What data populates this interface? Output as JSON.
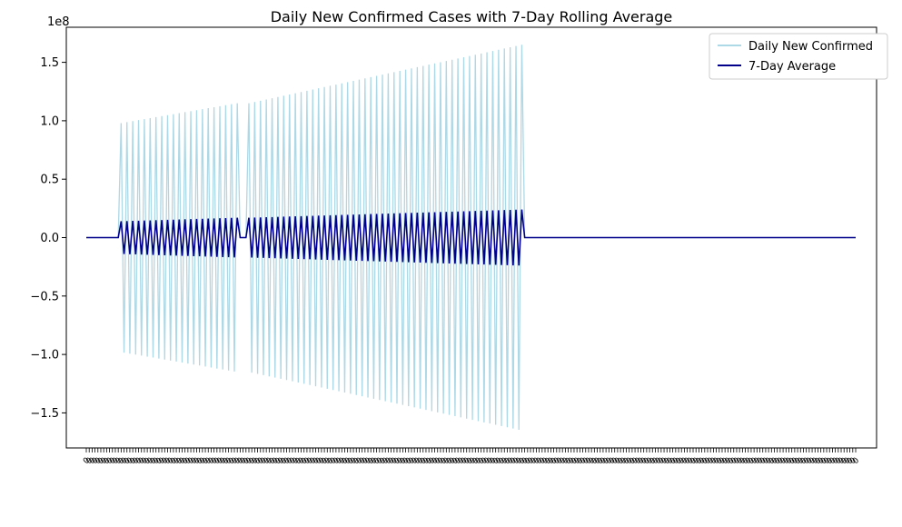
{
  "chart_data": {
    "type": "line",
    "title": "Daily New Confirmed Cases with 7-Day Rolling Average",
    "xlabel": "",
    "ylabel": "",
    "y_offset_text": "1e8",
    "ylim": [
      -180000000,
      180000000
    ],
    "yticks": [
      -150000000,
      -100000000,
      -50000000,
      0,
      50000000,
      100000000,
      150000000
    ],
    "ytick_labels": [
      "−1.5",
      "−1.0",
      "−0.5",
      "0.0",
      "0.5",
      "1.0",
      "1.5"
    ],
    "x_count": 266,
    "x_tick_label": "0",
    "legend_position": "upper right",
    "grid": false,
    "series": [
      {
        "name": "Daily New Confirmed",
        "color": "#add8e6",
        "segments": [
          {
            "type": "flat",
            "from": 0,
            "to": 11,
            "value": 0
          },
          {
            "type": "alternating",
            "from": 12,
            "to": 52,
            "amp_start": 98000000,
            "amp_end": 115000000
          },
          {
            "type": "flat",
            "from": 53,
            "to": 55,
            "value": 0
          },
          {
            "type": "alternating",
            "from": 56,
            "to": 150,
            "amp_start": 115000000,
            "amp_end": 165000000
          },
          {
            "type": "flat",
            "from": 151,
            "to": 265,
            "value": 0
          }
        ]
      },
      {
        "name": "7-Day Average",
        "color": "#00008b",
        "segments": [
          {
            "type": "flat",
            "from": 0,
            "to": 11,
            "value": 0
          },
          {
            "type": "alternating",
            "from": 12,
            "to": 52,
            "amp_start": 14000000,
            "amp_end": 17000000
          },
          {
            "type": "flat",
            "from": 53,
            "to": 55,
            "value": 0
          },
          {
            "type": "alternating",
            "from": 56,
            "to": 150,
            "amp_start": 17000000,
            "amp_end": 24000000
          },
          {
            "type": "flat",
            "from": 151,
            "to": 265,
            "value": 0
          }
        ]
      }
    ]
  }
}
